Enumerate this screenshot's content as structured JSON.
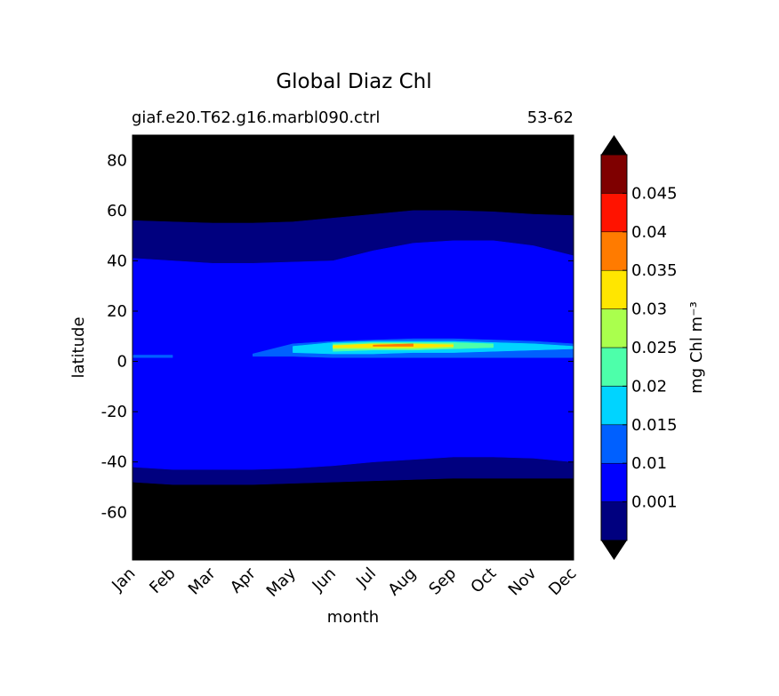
{
  "chart_data": {
    "type": "contourf",
    "title": "Global Diaz Chl",
    "subtitle_left": "giaf.e20.T62.g16.marbl090.ctrl",
    "subtitle_right": "53-62",
    "x_label": "month",
    "y_label": "latitude",
    "categories": [
      "Jan",
      "Feb",
      "Mar",
      "Apr",
      "May",
      "Jun",
      "Jul",
      "Aug",
      "Sep",
      "Oct",
      "Nov",
      "Dec"
    ],
    "ylim": [
      -79,
      90
    ],
    "yticks": [
      -60,
      -40,
      -20,
      0,
      20,
      40,
      60,
      80
    ],
    "background_color": "#000000",
    "levels": [
      0.001,
      0.01,
      0.015,
      0.02,
      0.025,
      0.03,
      0.035,
      0.04,
      0.045
    ],
    "colors": [
      "#00007f",
      "#0000ff",
      "#0060ff",
      "#00d4ff",
      "#4dffaa",
      "#aaff4d",
      "#ffe600",
      "#ff7b00",
      "#ff1300",
      "#7f0000"
    ],
    "extend_color": "#000000",
    "colorbar_label": "mg Chl m⁻³",
    "regions": [
      {
        "color_index": 0,
        "north": [
          56,
          55.5,
          55,
          55,
          55.5,
          57,
          58.5,
          60,
          60,
          59.5,
          58.5,
          58
        ],
        "south": [
          -48,
          -49,
          -49,
          -49,
          -48.5,
          -48,
          -47.5,
          -47,
          -46.5,
          -46.5,
          -46.5,
          -46.5
        ]
      },
      {
        "color_index": 1,
        "north": [
          41,
          40,
          39,
          39,
          39.5,
          40,
          44,
          47,
          48,
          48,
          46,
          42
        ],
        "south": [
          -42,
          -43,
          -43,
          -43,
          -42.5,
          -41.5,
          -40,
          -39,
          -38,
          -38,
          -38.5,
          -40
        ]
      },
      {
        "color_index": 2,
        "north": [
          2.5,
          2.5,
          null,
          3,
          7,
          8,
          8.5,
          9,
          9,
          8.5,
          8,
          7
        ],
        "south": [
          1.5,
          1.5,
          null,
          2,
          2,
          1.5,
          1.5,
          1.5,
          1.5,
          1.5,
          1.5,
          1.5
        ]
      },
      {
        "color_index": 3,
        "north": [
          null,
          null,
          null,
          null,
          6,
          7.5,
          8,
          8,
          8,
          7.5,
          7,
          6
        ],
        "south": [
          null,
          null,
          null,
          null,
          3.5,
          3,
          3,
          3.5,
          3.5,
          4,
          4.5,
          5
        ]
      },
      {
        "color_index": 4,
        "north": [
          null,
          null,
          null,
          null,
          null,
          7,
          7.5,
          7.5,
          7.5,
          7,
          null,
          null
        ],
        "south": [
          null,
          null,
          null,
          null,
          null,
          4,
          4.5,
          4.5,
          5,
          5.5,
          null,
          null
        ]
      },
      {
        "color_index": 5,
        "north": [
          null,
          null,
          null,
          null,
          null,
          6.5,
          7,
          7,
          7,
          null,
          null,
          null
        ],
        "south": [
          null,
          null,
          null,
          null,
          null,
          5,
          5,
          5,
          5.5,
          null,
          null,
          null
        ]
      },
      {
        "color_index": 6,
        "north": [
          null,
          null,
          null,
          null,
          null,
          6.2,
          7,
          7,
          6.5,
          null,
          null,
          null
        ],
        "south": [
          null,
          null,
          null,
          null,
          null,
          5.5,
          5.5,
          5.5,
          6,
          null,
          null,
          null
        ]
      },
      {
        "color_index": 7,
        "north": [
          null,
          null,
          null,
          null,
          null,
          null,
          6.5,
          7,
          null,
          null,
          null,
          null
        ],
        "south": [
          null,
          null,
          null,
          null,
          null,
          null,
          6,
          6,
          null,
          null,
          null,
          null
        ]
      }
    ]
  }
}
